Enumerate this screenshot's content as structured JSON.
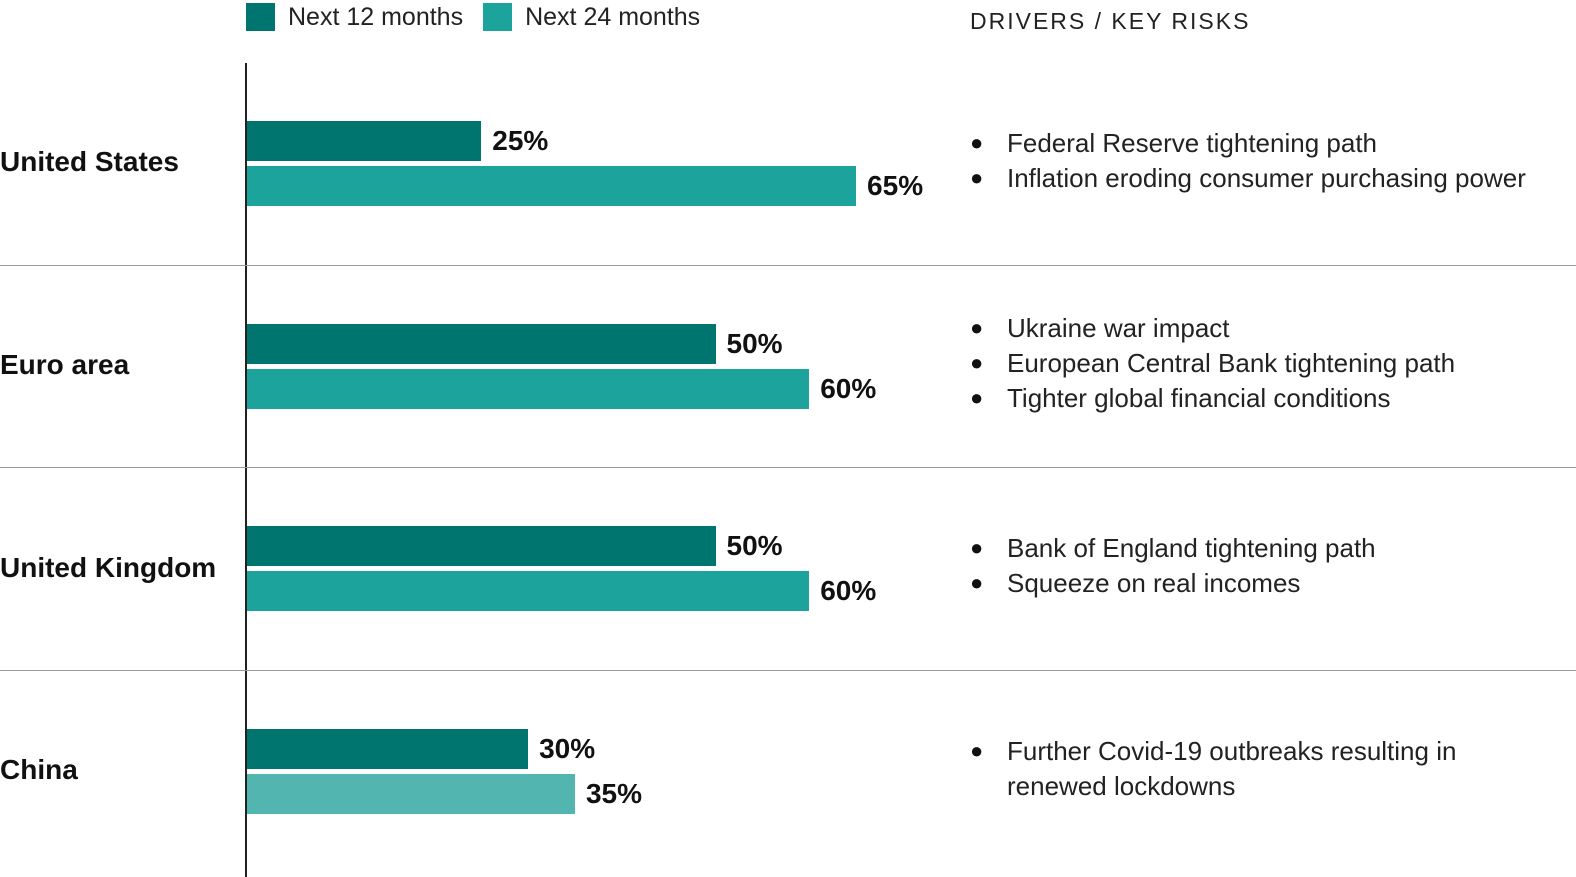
{
  "legend": [
    {
      "label": "Next 12 months",
      "color": "#007570"
    },
    {
      "label": "Next 24 months",
      "color": "#1ba39c"
    }
  ],
  "risks_header": "DRIVERS / KEY RISKS",
  "colors": {
    "next_12": "#007570",
    "next_24": "#1ba39c",
    "next_24_light": "#53b5b0"
  },
  "chart_data": {
    "type": "bar",
    "orientation": "horizontal",
    "categories": [
      "United States",
      "Euro area",
      "United Kingdom",
      "China"
    ],
    "series": [
      {
        "name": "Next 12 months",
        "values": [
          25,
          50,
          50,
          30
        ],
        "labels": [
          "25%",
          "50%",
          "50%",
          "30%"
        ]
      },
      {
        "name": "Next 24 months",
        "values": [
          65,
          60,
          60,
          35
        ],
        "labels": [
          "65%",
          "60%",
          "60%",
          "35%"
        ]
      }
    ],
    "xlim": [
      0,
      100
    ],
    "grid": false,
    "legend_position": "top-left"
  },
  "rows": [
    {
      "country": "United States",
      "risks": [
        "Federal Reserve tightening path",
        "Inflation eroding consumer purchasing power"
      ]
    },
    {
      "country": "Euro area",
      "risks": [
        "Ukraine war impact",
        "European Central Bank tightening path",
        "Tighter global financial conditions"
      ]
    },
    {
      "country": "United Kingdom",
      "risks": [
        "Bank of England tightening path",
        "Squeeze on real incomes"
      ]
    },
    {
      "country": "China",
      "risks": [
        "Further Covid-19 outbreaks resulting in renewed lockdowns"
      ]
    }
  ]
}
